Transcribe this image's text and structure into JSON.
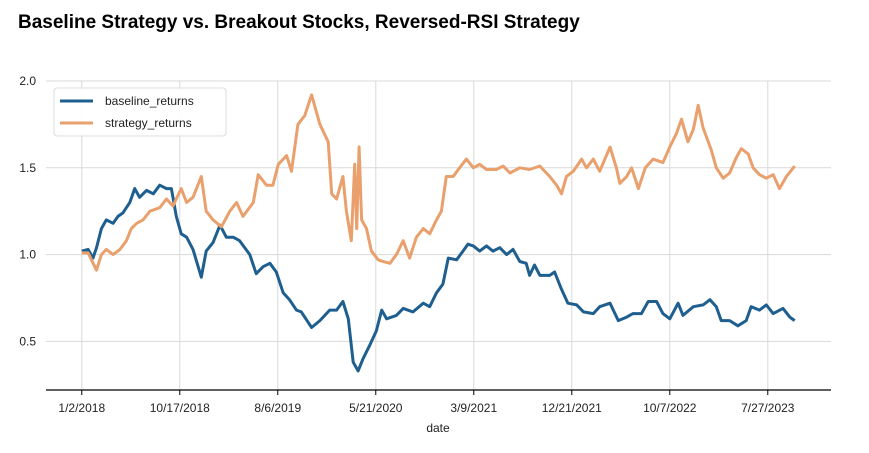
{
  "chart_data": {
    "type": "line",
    "title": "Baseline Strategy vs. Breakout Stocks, Reversed-RSI Strategy",
    "xlabel": "date",
    "ylabel": "",
    "x_unit": "trading-day index from 1/2/2018",
    "xlim": [
      -73,
      1529
    ],
    "ylim": [
      0.22,
      2.0
    ],
    "grid": true,
    "legend_position": "top-left",
    "x_ticks": [
      {
        "at": 0,
        "label": "1/2/2018"
      },
      {
        "at": 200,
        "label": "10/17/2018"
      },
      {
        "at": 400,
        "label": "8/6/2019"
      },
      {
        "at": 600,
        "label": "5/21/2020"
      },
      {
        "at": 800,
        "label": "3/9/2021"
      },
      {
        "at": 1000,
        "label": "12/21/2021"
      },
      {
        "at": 1200,
        "label": "10/7/2022"
      },
      {
        "at": 1400,
        "label": "7/27/2023"
      }
    ],
    "y_ticks": [
      {
        "at": 0.5,
        "label": "0.5"
      },
      {
        "at": 1.0,
        "label": "1.0"
      },
      {
        "at": 1.5,
        "label": "1.5"
      },
      {
        "at": 2.0,
        "label": "2.0"
      }
    ],
    "series": [
      {
        "name": "baseline_returns",
        "color": "#1f5f8f",
        "points": [
          [
            0,
            1.02
          ],
          [
            13,
            1.03
          ],
          [
            23,
            0.98
          ],
          [
            30,
            1.04
          ],
          [
            40,
            1.15
          ],
          [
            50,
            1.2
          ],
          [
            64,
            1.18
          ],
          [
            74,
            1.22
          ],
          [
            84,
            1.24
          ],
          [
            98,
            1.3
          ],
          [
            108,
            1.38
          ],
          [
            118,
            1.33
          ],
          [
            132,
            1.37
          ],
          [
            146,
            1.35
          ],
          [
            159,
            1.4
          ],
          [
            173,
            1.38
          ],
          [
            183,
            1.38
          ],
          [
            193,
            1.22
          ],
          [
            203,
            1.12
          ],
          [
            214,
            1.1
          ],
          [
            227,
            1.03
          ],
          [
            244,
            0.87
          ],
          [
            254,
            1.02
          ],
          [
            268,
            1.07
          ],
          [
            282,
            1.17
          ],
          [
            295,
            1.1
          ],
          [
            309,
            1.1
          ],
          [
            322,
            1.08
          ],
          [
            343,
            1.0
          ],
          [
            356,
            0.89
          ],
          [
            370,
            0.93
          ],
          [
            384,
            0.95
          ],
          [
            397,
            0.9
          ],
          [
            411,
            0.78
          ],
          [
            424,
            0.74
          ],
          [
            438,
            0.68
          ],
          [
            448,
            0.67
          ],
          [
            469,
            0.58
          ],
          [
            486,
            0.62
          ],
          [
            506,
            0.68
          ],
          [
            520,
            0.68
          ],
          [
            533,
            0.73
          ],
          [
            544,
            0.63
          ],
          [
            554,
            0.38
          ],
          [
            564,
            0.33
          ],
          [
            574,
            0.4
          ],
          [
            588,
            0.48
          ],
          [
            601,
            0.56
          ],
          [
            612,
            0.68
          ],
          [
            622,
            0.63
          ],
          [
            642,
            0.65
          ],
          [
            656,
            0.69
          ],
          [
            676,
            0.67
          ],
          [
            697,
            0.72
          ],
          [
            710,
            0.7
          ],
          [
            724,
            0.78
          ],
          [
            737,
            0.83
          ],
          [
            748,
            0.98
          ],
          [
            765,
            0.97
          ],
          [
            778,
            1.02
          ],
          [
            788,
            1.06
          ],
          [
            799,
            1.05
          ],
          [
            812,
            1.02
          ],
          [
            826,
            1.05
          ],
          [
            839,
            1.02
          ],
          [
            853,
            1.04
          ],
          [
            867,
            1.0
          ],
          [
            880,
            1.03
          ],
          [
            894,
            0.96
          ],
          [
            907,
            0.95
          ],
          [
            914,
            0.88
          ],
          [
            924,
            0.94
          ],
          [
            935,
            0.88
          ],
          [
            955,
            0.88
          ],
          [
            965,
            0.9
          ],
          [
            979,
            0.8
          ],
          [
            992,
            0.72
          ],
          [
            1010,
            0.71
          ],
          [
            1024,
            0.67
          ],
          [
            1044,
            0.66
          ],
          [
            1057,
            0.7
          ],
          [
            1078,
            0.72
          ],
          [
            1095,
            0.62
          ],
          [
            1112,
            0.64
          ],
          [
            1125,
            0.66
          ],
          [
            1142,
            0.66
          ],
          [
            1156,
            0.73
          ],
          [
            1173,
            0.73
          ],
          [
            1186,
            0.66
          ],
          [
            1200,
            0.63
          ],
          [
            1217,
            0.72
          ],
          [
            1227,
            0.65
          ],
          [
            1248,
            0.7
          ],
          [
            1268,
            0.71
          ],
          [
            1282,
            0.74
          ],
          [
            1295,
            0.7
          ],
          [
            1305,
            0.62
          ],
          [
            1322,
            0.62
          ],
          [
            1339,
            0.59
          ],
          [
            1356,
            0.62
          ],
          [
            1366,
            0.7
          ],
          [
            1383,
            0.68
          ],
          [
            1397,
            0.71
          ],
          [
            1411,
            0.66
          ],
          [
            1431,
            0.69
          ],
          [
            1445,
            0.64
          ],
          [
            1455,
            0.62
          ]
        ]
      },
      {
        "name": "strategy_returns",
        "color": "#e9a06c",
        "points": [
          [
            0,
            1.01
          ],
          [
            13,
            1.01
          ],
          [
            30,
            0.91
          ],
          [
            40,
            1.0
          ],
          [
            50,
            1.03
          ],
          [
            64,
            1.0
          ],
          [
            78,
            1.03
          ],
          [
            91,
            1.08
          ],
          [
            101,
            1.15
          ],
          [
            112,
            1.18
          ],
          [
            125,
            1.2
          ],
          [
            139,
            1.25
          ],
          [
            159,
            1.27
          ],
          [
            173,
            1.32
          ],
          [
            186,
            1.28
          ],
          [
            203,
            1.38
          ],
          [
            214,
            1.3
          ],
          [
            227,
            1.33
          ],
          [
            244,
            1.45
          ],
          [
            254,
            1.25
          ],
          [
            268,
            1.2
          ],
          [
            285,
            1.16
          ],
          [
            302,
            1.25
          ],
          [
            316,
            1.3
          ],
          [
            329,
            1.22
          ],
          [
            350,
            1.3
          ],
          [
            360,
            1.46
          ],
          [
            377,
            1.4
          ],
          [
            390,
            1.4
          ],
          [
            401,
            1.52
          ],
          [
            418,
            1.57
          ],
          [
            428,
            1.48
          ],
          [
            441,
            1.75
          ],
          [
            455,
            1.8
          ],
          [
            469,
            1.92
          ],
          [
            486,
            1.75
          ],
          [
            503,
            1.65
          ],
          [
            510,
            1.35
          ],
          [
            520,
            1.32
          ],
          [
            533,
            1.45
          ],
          [
            540,
            1.25
          ],
          [
            550,
            1.08
          ],
          [
            557,
            1.52
          ],
          [
            561,
            1.15
          ],
          [
            566,
            1.62
          ],
          [
            571,
            1.2
          ],
          [
            581,
            1.15
          ],
          [
            591,
            1.02
          ],
          [
            605,
            0.97
          ],
          [
            615,
            0.96
          ],
          [
            629,
            0.95
          ],
          [
            642,
            1.0
          ],
          [
            656,
            1.08
          ],
          [
            669,
            0.98
          ],
          [
            683,
            1.1
          ],
          [
            697,
            1.15
          ],
          [
            710,
            1.12
          ],
          [
            724,
            1.2
          ],
          [
            734,
            1.25
          ],
          [
            744,
            1.45
          ],
          [
            758,
            1.45
          ],
          [
            771,
            1.5
          ],
          [
            785,
            1.55
          ],
          [
            799,
            1.5
          ],
          [
            812,
            1.52
          ],
          [
            826,
            1.49
          ],
          [
            846,
            1.49
          ],
          [
            860,
            1.51
          ],
          [
            874,
            1.47
          ],
          [
            894,
            1.5
          ],
          [
            914,
            1.49
          ],
          [
            935,
            1.51
          ],
          [
            955,
            1.45
          ],
          [
            969,
            1.4
          ],
          [
            979,
            1.35
          ],
          [
            989,
            1.45
          ],
          [
            1003,
            1.48
          ],
          [
            1020,
            1.55
          ],
          [
            1030,
            1.5
          ],
          [
            1044,
            1.55
          ],
          [
            1057,
            1.48
          ],
          [
            1078,
            1.62
          ],
          [
            1091,
            1.5
          ],
          [
            1098,
            1.41
          ],
          [
            1112,
            1.45
          ],
          [
            1122,
            1.5
          ],
          [
            1136,
            1.38
          ],
          [
            1150,
            1.5
          ],
          [
            1166,
            1.55
          ],
          [
            1186,
            1.53
          ],
          [
            1200,
            1.62
          ],
          [
            1214,
            1.7
          ],
          [
            1224,
            1.78
          ],
          [
            1237,
            1.65
          ],
          [
            1248,
            1.72
          ],
          [
            1258,
            1.86
          ],
          [
            1268,
            1.73
          ],
          [
            1285,
            1.6
          ],
          [
            1295,
            1.5
          ],
          [
            1309,
            1.44
          ],
          [
            1322,
            1.47
          ],
          [
            1336,
            1.56
          ],
          [
            1346,
            1.61
          ],
          [
            1360,
            1.58
          ],
          [
            1370,
            1.5
          ],
          [
            1383,
            1.46
          ],
          [
            1397,
            1.44
          ],
          [
            1411,
            1.46
          ],
          [
            1424,
            1.38
          ],
          [
            1438,
            1.45
          ],
          [
            1455,
            1.51
          ]
        ]
      }
    ]
  }
}
